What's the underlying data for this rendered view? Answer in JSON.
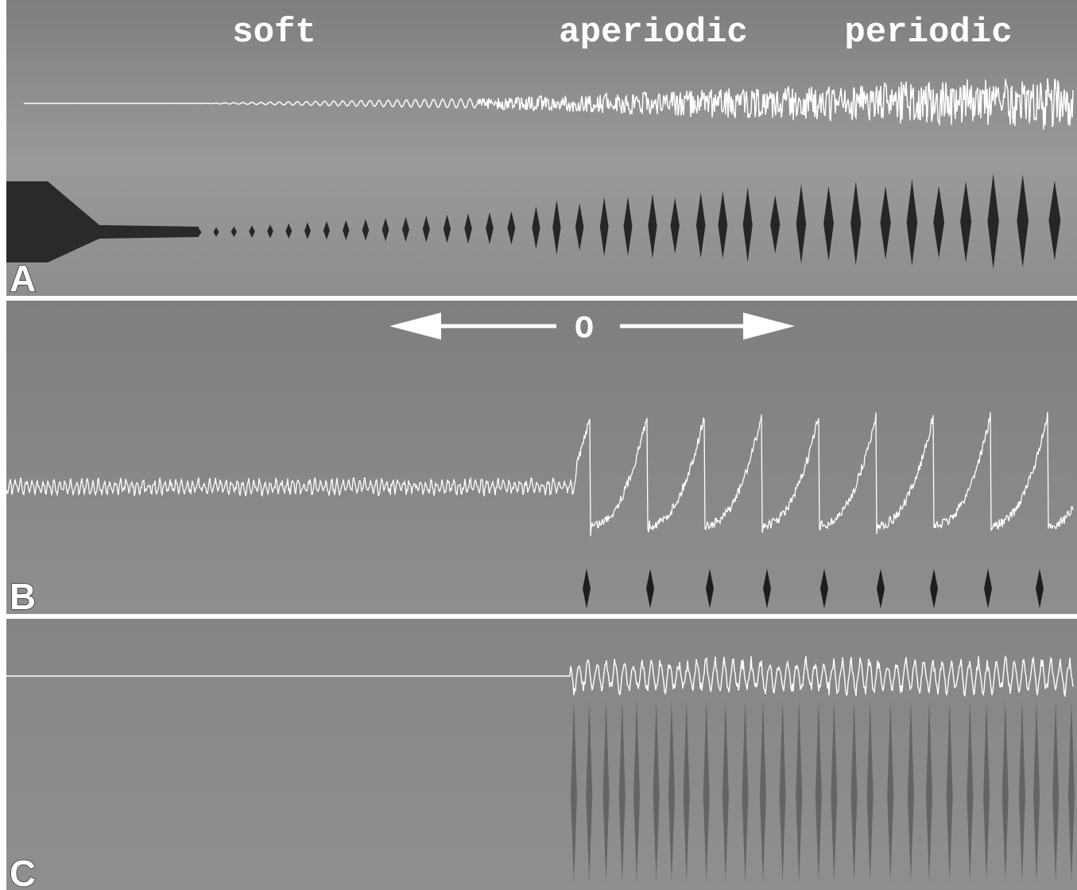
{
  "panels": [
    {
      "label": "A",
      "annotations": [
        "soft",
        "aperiodic",
        "periodic"
      ]
    },
    {
      "label": "B",
      "marker": "O"
    },
    {
      "label": "C"
    }
  ]
}
